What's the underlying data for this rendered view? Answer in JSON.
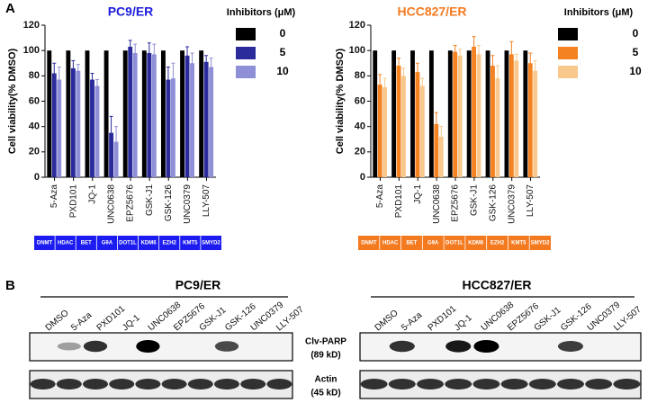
{
  "panel_labels": [
    "A",
    "B"
  ],
  "chart_data": [
    {
      "type": "bar",
      "title": "PC9/ER",
      "title_color": "#1c1cdc",
      "ylabel": "Cell viability(% DMSO)",
      "legend_title": "Inhibitors (μM)",
      "categories": [
        "5-Aza",
        "PXD101",
        "JQ-1",
        "UNC0638",
        "EPZ5676",
        "GSK-J1",
        "GSK-126",
        "UNC0379",
        "LLY-507"
      ],
      "group_labels": [
        "DNMT",
        "HDAC",
        "BET",
        "G9A",
        "DOT1L",
        "KDM6",
        "EZH2",
        "KMT5",
        "SMYD2"
      ],
      "group_color": "#1c1cf0",
      "series": [
        {
          "name": "0",
          "color": "#000000",
          "values": [
            100,
            100,
            100,
            100,
            100,
            100,
            100,
            100,
            100
          ]
        },
        {
          "name": "5",
          "color": "#2b2b9c",
          "values": [
            82,
            86,
            77,
            35,
            103,
            98,
            77,
            96,
            91
          ],
          "errors": [
            8,
            6,
            5,
            13,
            5,
            8,
            10,
            7,
            5
          ]
        },
        {
          "name": "10",
          "color": "#8f8fd8",
          "values": [
            77,
            84,
            72,
            28,
            98,
            97,
            78,
            90,
            87
          ],
          "errors": [
            10,
            5,
            5,
            12,
            7,
            8,
            12,
            8,
            7
          ]
        }
      ],
      "ylim": [
        0,
        120
      ],
      "yticks": [
        0,
        20,
        40,
        60,
        80,
        100,
        120
      ]
    },
    {
      "type": "bar",
      "title": "HCC827/ER",
      "title_color": "#f47a20",
      "ylabel": "Cell viability(% DMSO)",
      "legend_title": "Inhibitors (μM)",
      "categories": [
        "5-Aza",
        "PXD101",
        "JQ-1",
        "UNC0638",
        "EPZ5676",
        "GSK-J1",
        "GSK-126",
        "UNC0379",
        "LLY-507"
      ],
      "group_labels": [
        "DNMT",
        "HDAC",
        "BET",
        "G9A",
        "DOT1L",
        "KDM6",
        "EZH2",
        "KMT5",
        "SMYD2"
      ],
      "group_color": "#f47a20",
      "series": [
        {
          "name": "0",
          "color": "#000000",
          "values": [
            100,
            100,
            100,
            100,
            100,
            100,
            100,
            100,
            100
          ]
        },
        {
          "name": "5",
          "color": "#f58220",
          "values": [
            73,
            88,
            83,
            42,
            99,
            103,
            88,
            97,
            90
          ],
          "errors": [
            8,
            6,
            7,
            9,
            5,
            8,
            8,
            10,
            8
          ]
        },
        {
          "name": "10",
          "color": "#f8c88c",
          "values": [
            71,
            80,
            72,
            32,
            96,
            97,
            78,
            92,
            84
          ],
          "errors": [
            7,
            6,
            6,
            8,
            5,
            7,
            10,
            5,
            8
          ]
        }
      ],
      "ylim": [
        0,
        120
      ],
      "yticks": [
        0,
        20,
        40,
        60,
        80,
        100,
        120
      ]
    }
  ],
  "blot": {
    "titles": [
      "PC9/ER",
      "HCC827/ER"
    ],
    "lanes": [
      "DMSO",
      "5-Aza",
      "PXD101",
      "JQ-1",
      "UNC0638",
      "EPZ5676",
      "GSK-J1",
      "GSK-126",
      "UNC0379",
      "LLY-507"
    ],
    "row_labels": [
      [
        "Clv-PARP",
        "(89 kD)"
      ],
      [
        "Actin",
        "(45 kD)"
      ]
    ]
  }
}
